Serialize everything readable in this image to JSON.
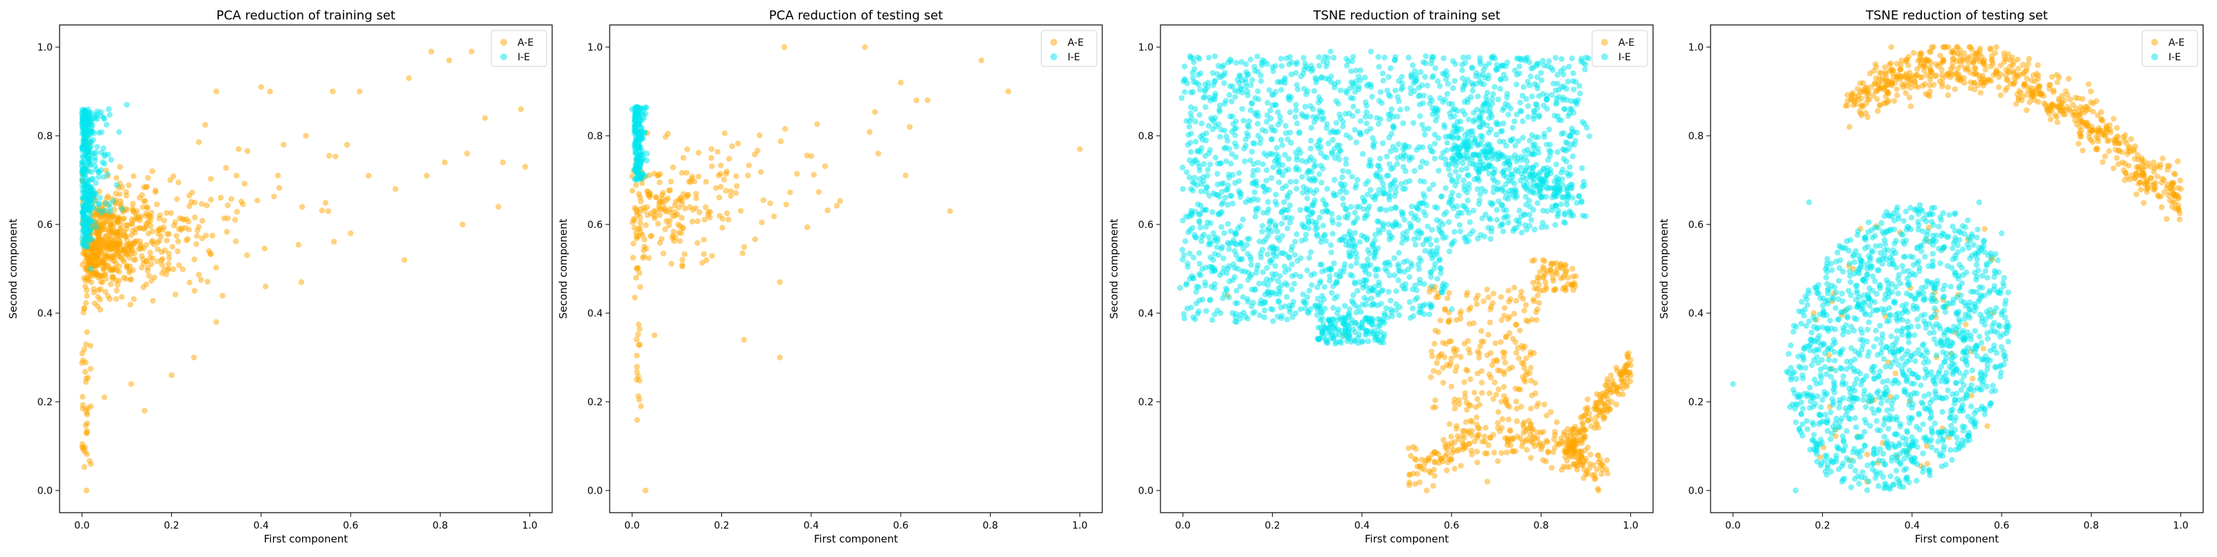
{
  "chart_data": [
    {
      "type": "scatter",
      "title": "PCA reduction of training set",
      "xlabel": "First component",
      "ylabel": "Second component",
      "xlim": [
        -0.05,
        1.05
      ],
      "ylim": [
        -0.05,
        1.05
      ],
      "xticks": [
        "0.0",
        "0.2",
        "0.4",
        "0.6",
        "0.8",
        "1.0"
      ],
      "yticks": [
        "0.0",
        "0.2",
        "0.4",
        "0.6",
        "0.8",
        "1.0"
      ],
      "legend": "top-right",
      "series": [
        {
          "name": "A-E",
          "color": "#ffa500",
          "pattern": "pca_train_ae",
          "points": [
            [
              0.01,
              0.0
            ],
            [
              0.02,
              0.06
            ],
            [
              0.01,
              0.13
            ],
            [
              0.02,
              0.19
            ],
            [
              0.05,
              0.21
            ],
            [
              0.14,
              0.18
            ],
            [
              0.11,
              0.24
            ],
            [
              0.2,
              0.26
            ],
            [
              0.25,
              0.3
            ],
            [
              0.3,
              0.38
            ],
            [
              0.41,
              0.46
            ],
            [
              0.49,
              0.47
            ],
            [
              0.72,
              0.52
            ],
            [
              0.85,
              0.6
            ],
            [
              0.93,
              0.64
            ],
            [
              0.6,
              0.58
            ],
            [
              0.55,
              0.63
            ],
            [
              0.7,
              0.68
            ],
            [
              0.64,
              0.71
            ],
            [
              0.77,
              0.71
            ],
            [
              0.81,
              0.74
            ],
            [
              0.86,
              0.76
            ],
            [
              0.94,
              0.74
            ],
            [
              0.99,
              0.73
            ],
            [
              0.9,
              0.84
            ],
            [
              0.98,
              0.86
            ],
            [
              1.0,
              1.0
            ],
            [
              0.87,
              0.99
            ],
            [
              0.78,
              0.99
            ],
            [
              0.82,
              0.97
            ],
            [
              0.73,
              0.93
            ],
            [
              0.62,
              0.9
            ],
            [
              0.56,
              0.9
            ],
            [
              0.42,
              0.9
            ],
            [
              0.4,
              0.91
            ],
            [
              0.3,
              0.9
            ],
            [
              0.5,
              0.8
            ],
            [
              0.45,
              0.78
            ],
            [
              0.35,
              0.77
            ]
          ]
        },
        {
          "name": "I-E",
          "color": "#00e5ee",
          "pattern": "pca_train_ie",
          "points": [
            [
              0.0,
              0.85
            ],
            [
              0.03,
              0.84
            ],
            [
              0.06,
              0.86
            ],
            [
              0.1,
              0.87
            ],
            [
              0.02,
              0.5
            ],
            [
              0.01,
              0.55
            ]
          ]
        }
      ]
    },
    {
      "type": "scatter",
      "title": "PCA reduction of testing set",
      "xlabel": "First component",
      "ylabel": "Second component",
      "xlim": [
        -0.05,
        1.05
      ],
      "ylim": [
        -0.05,
        1.05
      ],
      "xticks": [
        "0.0",
        "0.2",
        "0.4",
        "0.6",
        "0.8",
        "1.0"
      ],
      "yticks": [
        "0.0",
        "0.2",
        "0.4",
        "0.6",
        "0.8",
        "1.0"
      ],
      "legend": "top-right",
      "series": [
        {
          "name": "A-E",
          "color": "#ffa500",
          "pattern": "pca_test_ae",
          "points": [
            [
              0.03,
              0.0
            ],
            [
              0.02,
              0.19
            ],
            [
              0.01,
              0.25
            ],
            [
              0.05,
              0.35
            ],
            [
              0.25,
              0.34
            ],
            [
              0.33,
              0.3
            ],
            [
              0.33,
              0.47
            ],
            [
              0.71,
              0.63
            ],
            [
              0.78,
              0.97
            ],
            [
              0.84,
              0.9
            ],
            [
              1.0,
              0.77
            ],
            [
              0.52,
              1.0
            ],
            [
              0.34,
              1.0
            ],
            [
              0.6,
              0.92
            ],
            [
              0.66,
              0.88
            ],
            [
              0.62,
              0.82
            ],
            [
              0.55,
              0.76
            ]
          ]
        },
        {
          "name": "I-E",
          "color": "#00e5ee",
          "pattern": "pca_test_ie",
          "points": [
            [
              0.0,
              0.86
            ],
            [
              0.03,
              0.85
            ],
            [
              0.02,
              0.8
            ]
          ]
        }
      ]
    },
    {
      "type": "scatter",
      "title": "TSNE reduction of training set",
      "xlabel": "First component",
      "ylabel": "Second component",
      "xlim": [
        -0.05,
        1.05
      ],
      "ylim": [
        -0.05,
        1.05
      ],
      "xticks": [
        "0.0",
        "0.2",
        "0.4",
        "0.6",
        "0.8",
        "1.0"
      ],
      "yticks": [
        "0.0",
        "0.2",
        "0.4",
        "0.6",
        "0.8",
        "1.0"
      ],
      "legend": "top-right",
      "series": [
        {
          "name": "A-E",
          "color": "#ffa500",
          "pattern": "tsne_train_ae",
          "points": [
            [
              1.0,
              0.26
            ],
            [
              0.97,
              0.27
            ],
            [
              0.68,
              0.02
            ],
            [
              0.86,
              0.48
            ],
            [
              0.87,
              0.5
            ],
            [
              0.36,
              0.35
            ],
            [
              0.1,
              0.44
            ]
          ]
        },
        {
          "name": "I-E",
          "color": "#00e5ee",
          "pattern": "tsne_train_ie",
          "points": [
            [
              0.0,
              0.68
            ],
            [
              0.03,
              0.57
            ],
            [
              0.06,
              0.56
            ],
            [
              0.33,
              0.99
            ],
            [
              0.42,
              0.99
            ],
            [
              0.82,
              0.78
            ],
            [
              0.87,
              0.66
            ],
            [
              0.12,
              0.38
            ],
            [
              0.28,
              0.4
            ]
          ]
        }
      ]
    },
    {
      "type": "scatter",
      "title": "TSNE reduction of testing set",
      "xlabel": "First component",
      "ylabel": "Second component",
      "xlim": [
        -0.05,
        1.05
      ],
      "ylim": [
        -0.05,
        1.05
      ],
      "xticks": [
        "0.0",
        "0.2",
        "0.4",
        "0.6",
        "0.8",
        "1.0"
      ],
      "yticks": [
        "0.0",
        "0.2",
        "0.4",
        "0.6",
        "0.8",
        "1.0"
      ],
      "legend": "top-right",
      "series": [
        {
          "name": "A-E",
          "color": "#ffa500",
          "pattern": "tsne_test_ae",
          "points": [
            [
              0.26,
              0.82
            ],
            [
              0.3,
              0.89
            ],
            [
              0.5,
              1.0
            ],
            [
              0.98,
              0.68
            ],
            [
              1.0,
              0.68
            ],
            [
              0.18,
              0.4
            ],
            [
              0.58,
              0.4
            ],
            [
              0.3,
              0.02
            ]
          ]
        },
        {
          "name": "I-E",
          "color": "#00e5ee",
          "pattern": "tsne_test_ie",
          "points": [
            [
              0.0,
              0.24
            ],
            [
              0.14,
              0.0
            ],
            [
              0.17,
              0.65
            ],
            [
              0.55,
              0.65
            ],
            [
              0.6,
              0.58
            ],
            [
              0.4,
              0.12
            ]
          ]
        }
      ]
    }
  ]
}
